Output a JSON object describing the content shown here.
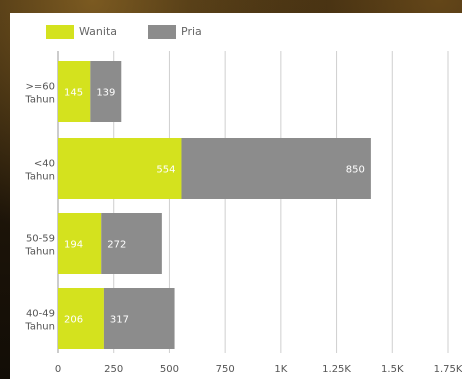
{
  "chart_data": {
    "type": "bar",
    "orientation": "horizontal",
    "stacked": true,
    "categories": [
      ">=60\nTahun",
      "<40\nTahun",
      "50-59\nTahun",
      "40-49\nTahun"
    ],
    "series": [
      {
        "name": "Wanita",
        "color": "#d4e21e",
        "values": [
          145,
          554,
          194,
          206
        ]
      },
      {
        "name": "Pria",
        "color": "#8c8c8c",
        "values": [
          139,
          850,
          272,
          317
        ]
      }
    ],
    "xlim": [
      0,
      1750
    ],
    "xticks": [
      0,
      250,
      500,
      750,
      1000,
      1250,
      1500,
      1750
    ],
    "xtick_labels": [
      "0",
      "250",
      "500",
      "750",
      "1K",
      "1.25K",
      "1.5K",
      "1.75K"
    ],
    "legend": "top-left",
    "grid": true
  }
}
